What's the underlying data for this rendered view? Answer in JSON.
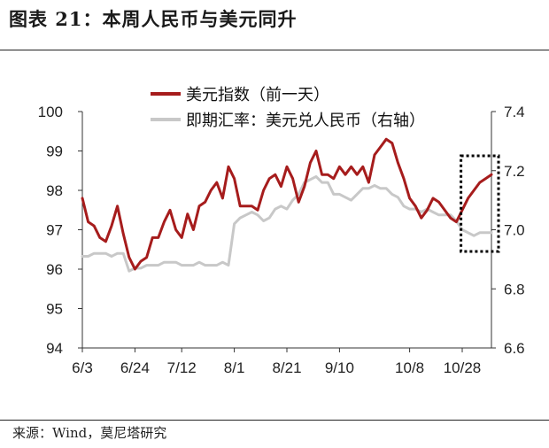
{
  "figure_title": "图表 21：本周人民币与美元同升",
  "source_text": "来源：Wind，莫尼塔研究",
  "colors": {
    "usd_index_line": "#a61c1c",
    "cny_rate_line": "#c8c8c8",
    "highlight_box": "#000000"
  },
  "chart_data": {
    "type": "line",
    "x": [
      "6/3",
      "6/5",
      "6/7",
      "6/10",
      "6/12",
      "6/14",
      "6/17",
      "6/19",
      "6/21",
      "6/24",
      "6/26",
      "6/28",
      "7/1",
      "7/3",
      "7/5",
      "7/8",
      "7/10",
      "7/12",
      "7/15",
      "7/17",
      "7/19",
      "7/22",
      "7/24",
      "7/26",
      "7/29",
      "7/31",
      "8/1",
      "8/3",
      "8/5",
      "8/7",
      "8/9",
      "8/12",
      "8/14",
      "8/16",
      "8/19",
      "8/21",
      "8/23",
      "8/26",
      "8/28",
      "8/30",
      "9/2",
      "9/4",
      "9/6",
      "9/9",
      "9/10",
      "9/12",
      "9/14",
      "9/17",
      "9/19",
      "9/21",
      "9/24",
      "9/26",
      "9/28",
      "10/1",
      "10/3",
      "10/5",
      "10/8",
      "10/10",
      "10/12",
      "10/15",
      "10/17",
      "10/19",
      "10/22",
      "10/24",
      "10/26",
      "10/28",
      "10/30",
      "11/1",
      "11/3",
      "11/5",
      "11/7"
    ],
    "x_tick_labels": [
      "6/3",
      "6/24",
      "7/12",
      "8/1",
      "8/21",
      "9/10",
      "10/8",
      "10/28"
    ],
    "series": [
      {
        "name": "美元指数（前一天）",
        "axis": "left",
        "values": [
          97.8,
          97.2,
          97.1,
          96.8,
          96.7,
          97.1,
          97.6,
          96.9,
          96.3,
          96.0,
          96.2,
          96.3,
          96.8,
          96.8,
          97.2,
          97.5,
          97.0,
          96.8,
          97.4,
          97.0,
          97.6,
          97.7,
          98.0,
          98.2,
          97.8,
          98.6,
          98.3,
          97.6,
          97.6,
          97.6,
          97.5,
          98.0,
          98.3,
          98.4,
          98.1,
          98.6,
          98.3,
          97.7,
          98.1,
          98.7,
          99.0,
          98.4,
          98.4,
          98.3,
          98.6,
          98.4,
          98.6,
          98.4,
          98.6,
          98.2,
          98.9,
          99.1,
          99.3,
          99.2,
          98.7,
          98.3,
          97.8,
          97.6,
          97.3,
          97.5,
          97.8,
          97.7,
          97.5,
          97.3,
          97.2,
          97.5,
          97.8,
          98.0,
          98.2,
          98.3,
          98.4
        ],
        "line_style": "solid"
      },
      {
        "name": "即期汇率：美元兑人民币（右轴）",
        "axis": "right",
        "values": [
          6.91,
          6.91,
          6.92,
          6.92,
          6.92,
          6.91,
          6.92,
          6.92,
          6.86,
          6.87,
          6.87,
          6.88,
          6.88,
          6.88,
          6.89,
          6.89,
          6.89,
          6.88,
          6.88,
          6.88,
          6.89,
          6.88,
          6.88,
          6.88,
          6.89,
          6.88,
          7.02,
          7.04,
          7.05,
          7.06,
          7.05,
          7.03,
          7.04,
          7.07,
          7.08,
          7.07,
          7.1,
          7.12,
          7.16,
          7.17,
          7.18,
          7.16,
          7.16,
          7.12,
          7.12,
          7.11,
          7.1,
          7.12,
          7.14,
          7.14,
          7.15,
          7.14,
          7.14,
          7.12,
          7.11,
          7.08,
          7.07,
          7.07,
          7.06,
          7.07,
          7.06,
          7.05,
          7.05,
          7.05,
          7.03,
          7.0,
          6.99,
          6.98,
          6.99,
          6.99,
          6.99
        ],
        "line_style": "solid"
      }
    ],
    "y_left": {
      "ylim": [
        94,
        100
      ],
      "ticks": [
        "94",
        "95",
        "96",
        "97",
        "98",
        "99",
        "100"
      ]
    },
    "y_right": {
      "ylim": [
        6.6,
        7.4
      ],
      "ticks": [
        "6.6",
        "6.8",
        "7.0",
        "7.2",
        "7.4"
      ]
    },
    "highlight": {
      "x_start": "10/30",
      "x_end": "11/7",
      "style": "dotted-box"
    },
    "legend": {
      "placement": "top-center"
    },
    "grid": false
  }
}
